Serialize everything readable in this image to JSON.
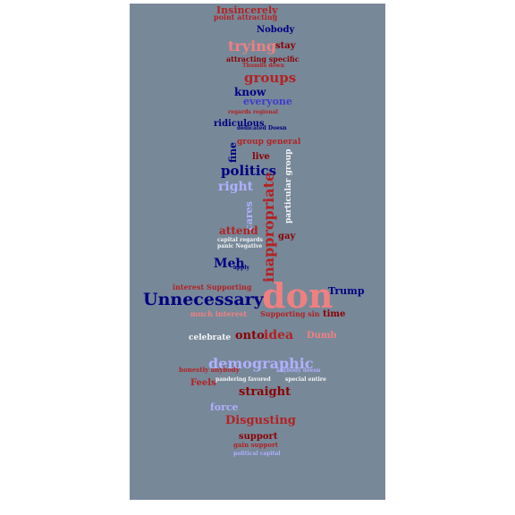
{
  "colors": {
    "background": "#778899",
    "red": "#b22222",
    "pink": "#f08080",
    "navy": "#000080",
    "blue": "#3d3dcc",
    "lavender": "#b0b0ff",
    "white": "#f5f5f5",
    "maroon": "#8b0000"
  },
  "words": {
    "insincerely": "Insincerely",
    "point_attracting": "point attracting",
    "nobody": "Nobody",
    "trying": "trying",
    "stay": "stay",
    "attracting_specific": "attracting specific",
    "thumbs_down": "Thumbs down",
    "groups": "groups",
    "know": "know",
    "everyone": "everyone",
    "regards_regional": "regards regional",
    "ridiculous": "ridiculous",
    "dedicated_doesn": "dedicated Doesn",
    "group_general": "group general",
    "fine": "fine",
    "live": "live",
    "politics": "politics",
    "right": "right",
    "cares": "cares",
    "inappropriate": "inappropriate",
    "particular_group": "particular group",
    "attend": "attend",
    "capital_regards": "capital regards",
    "panic_negative": "panic Negative",
    "gay": "gay",
    "meh": "Meh",
    "apply": "apply",
    "interest_supporting": "interest Supporting",
    "don": "don",
    "unnecessary": "Unnecessary",
    "trump": "Trump",
    "supporting_sin": "Supporting sin",
    "much_interest": "much interest",
    "time": "time",
    "onto": "onto",
    "idea": "idea",
    "dumb": "Dumb",
    "celebrate": "celebrate",
    "demographic": "demographic",
    "honestly_anybody": "honestly anybody",
    "feels": "Feels",
    "pandering_favored": "pandering favored",
    "special_entire": "special entire",
    "straight": "straight",
    "force": "force",
    "disgusting": "Disgusting",
    "support": "support",
    "gain_support": "gain support",
    "political_capital": "political capital",
    "anybody_doesn": "anybody doesn"
  }
}
